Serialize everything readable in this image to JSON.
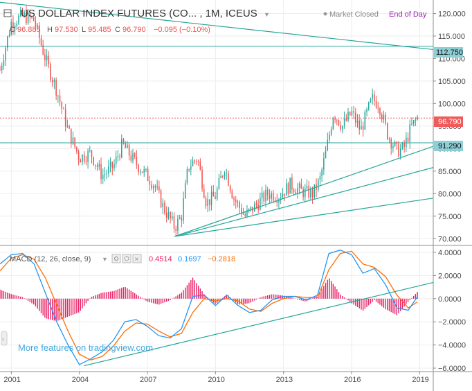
{
  "header": {
    "title": "US DOLLAR INDEX FUTURES (CO... , 1M, ICEUS",
    "status": "Market Closed",
    "end_of_day": "End of Day",
    "ohlc": {
      "o_label": "O",
      "o_value": "96.885",
      "h_label": "H",
      "h_value": "97.530",
      "l_label": "L",
      "l_value": "95.485",
      "c_label": "C",
      "c_value": "96.790",
      "change": "−0.095 (−0.10%)"
    }
  },
  "macd": {
    "label": "MACD (12, 26, close, 9)",
    "value_hist": "0.4514",
    "value_macd": "0.1697",
    "value_signal": "−0.2818"
  },
  "watermark": "More features on tradingview.com",
  "price_badges": {
    "upper": "112.750",
    "last": "96.790",
    "lower": "91.290"
  },
  "colors": {
    "up": "#26a69a",
    "down": "#ef5350",
    "macd_line": "#2196f3",
    "signal_line": "#ff6d00",
    "hist": "#e91e63",
    "trendline": "#26a69a",
    "badge_teal": "#8ecfd6",
    "badge_red": "#f05a5a"
  },
  "chart_data": [
    {
      "type": "candlestick",
      "title": "US DOLLAR INDEX FUTURES (CO... , 1M, ICEUS",
      "x_ticks": [
        "2001",
        "2004",
        "2007",
        "2010",
        "2013",
        "2016",
        "2019"
      ],
      "y_ticks": [
        "70.000",
        "75.000",
        "80.000",
        "85.000",
        "90.000",
        "95.000",
        "100.000",
        "105.000",
        "110.000",
        "115.000",
        "120.000"
      ],
      "ylim": [
        68.5,
        123
      ],
      "xlim": [
        2000.5,
        2019.6
      ],
      "series": [
        {
          "values": [
            [
              2000.5,
              107.5
            ],
            [
              2001.0,
              118.0
            ],
            [
              2001.5,
              119.5
            ],
            [
              2002.0,
              118.5
            ],
            [
              2002.5,
              110.0
            ],
            [
              2003.0,
              103.0
            ],
            [
              2003.5,
              94.0
            ],
            [
              2004.0,
              88.0
            ],
            [
              2004.5,
              89.0
            ],
            [
              2005.0,
              84.0
            ],
            [
              2005.5,
              86.0
            ],
            [
              2005.9,
              91.0
            ],
            [
              2006.3,
              88.0
            ],
            [
              2006.8,
              85.0
            ],
            [
              2007.3,
              82.0
            ],
            [
              2007.7,
              77.0
            ],
            [
              2008.2,
              72.5
            ],
            [
              2008.5,
              75.0
            ],
            [
              2008.8,
              86.0
            ],
            [
              2009.2,
              88.0
            ],
            [
              2009.6,
              78.0
            ],
            [
              2010.0,
              79.5
            ],
            [
              2010.4,
              86.0
            ],
            [
              2010.8,
              79.0
            ],
            [
              2011.3,
              75.0
            ],
            [
              2011.7,
              77.0
            ],
            [
              2012.3,
              80.0
            ],
            [
              2012.8,
              79.5
            ],
            [
              2013.3,
              82.0
            ],
            [
              2013.8,
              80.5
            ],
            [
              2014.3,
              80.0
            ],
            [
              2014.6,
              83.0
            ],
            [
              2014.9,
              90.0
            ],
            [
              2015.2,
              98.0
            ],
            [
              2015.6,
              95.0
            ],
            [
              2016.0,
              98.0
            ],
            [
              2016.4,
              94.0
            ],
            [
              2016.9,
              101.0
            ],
            [
              2017.2,
              100.0
            ],
            [
              2017.6,
              93.0
            ],
            [
              2018.0,
              89.5
            ],
            [
              2018.3,
              90.0
            ],
            [
              2018.6,
              94.5
            ],
            [
              2018.9,
              96.8
            ]
          ]
        }
      ],
      "horizontal_lines": [
        112.75,
        96.79,
        91.29
      ],
      "trendlines": [
        {
          "from": [
            2000.5,
            122.5
          ],
          "to": [
            2019.6,
            112.0
          ]
        },
        {
          "from": [
            2008.2,
            70.5
          ],
          "to": [
            2019.6,
            90.5
          ]
        },
        {
          "from": [
            2008.2,
            70.5
          ],
          "to": [
            2019.6,
            85.8
          ]
        },
        {
          "from": [
            2008.2,
            70.5
          ],
          "to": [
            2019.6,
            79.0
          ]
        }
      ]
    },
    {
      "type": "line",
      "title": "MACD (12, 26, close, 9)",
      "y_ticks": [
        "4.0000",
        "2.0000",
        "0.0000",
        "−2.0000",
        "−4.0000",
        "−6.0000"
      ],
      "ylim": [
        -6.3,
        4.6
      ],
      "series": [
        {
          "name": "MACD",
          "x": [
            2000.5,
            2001.0,
            2001.5,
            2002.0,
            2002.5,
            2003.0,
            2003.5,
            2004.0,
            2004.5,
            2005.0,
            2005.5,
            2006.0,
            2006.5,
            2007.0,
            2007.5,
            2008.0,
            2008.5,
            2009.0,
            2009.5,
            2010.0,
            2010.5,
            2011.0,
            2011.5,
            2012.0,
            2012.5,
            2013.0,
            2013.5,
            2014.0,
            2014.5,
            2015.0,
            2015.5,
            2016.0,
            2016.5,
            2017.0,
            2017.5,
            2018.0,
            2018.5,
            2018.9
          ],
          "values": [
            3.0,
            3.8,
            3.9,
            3.0,
            0.5,
            -2.0,
            -4.0,
            -5.7,
            -5.2,
            -4.6,
            -3.6,
            -2.0,
            -1.8,
            -2.4,
            -3.2,
            -3.4,
            -2.6,
            0.2,
            0.3,
            -0.6,
            0.3,
            -0.6,
            -1.2,
            -1.0,
            -0.1,
            0.2,
            0.2,
            -0.1,
            0.3,
            3.9,
            4.2,
            3.8,
            2.2,
            2.6,
            1.2,
            -0.8,
            -1.0,
            0.17
          ]
        },
        {
          "name": "Signal",
          "x": [
            2000.5,
            2001.0,
            2001.5,
            2002.0,
            2002.5,
            2003.0,
            2003.5,
            2004.0,
            2004.5,
            2005.0,
            2005.5,
            2006.0,
            2006.5,
            2007.0,
            2007.5,
            2008.0,
            2008.5,
            2009.0,
            2009.5,
            2010.0,
            2010.5,
            2011.0,
            2011.5,
            2012.0,
            2012.5,
            2013.0,
            2013.5,
            2014.0,
            2014.5,
            2015.0,
            2015.5,
            2016.0,
            2016.5,
            2017.0,
            2017.5,
            2018.0,
            2018.5,
            2018.9
          ],
          "values": [
            2.4,
            3.5,
            3.8,
            3.4,
            1.8,
            -0.5,
            -2.8,
            -4.8,
            -5.3,
            -5.0,
            -4.1,
            -2.8,
            -2.1,
            -2.2,
            -2.8,
            -3.3,
            -3.0,
            -1.2,
            0.0,
            -0.2,
            0.0,
            -0.2,
            -0.9,
            -1.1,
            -0.4,
            0.0,
            0.2,
            0.1,
            0.1,
            2.5,
            3.9,
            4.1,
            3.0,
            2.7,
            1.9,
            0.3,
            -0.8,
            -0.28
          ]
        }
      ]
    }
  ],
  "window_controls": {
    "gear": "gear-icon",
    "eye": "eye-icon",
    "close": "close-icon"
  }
}
